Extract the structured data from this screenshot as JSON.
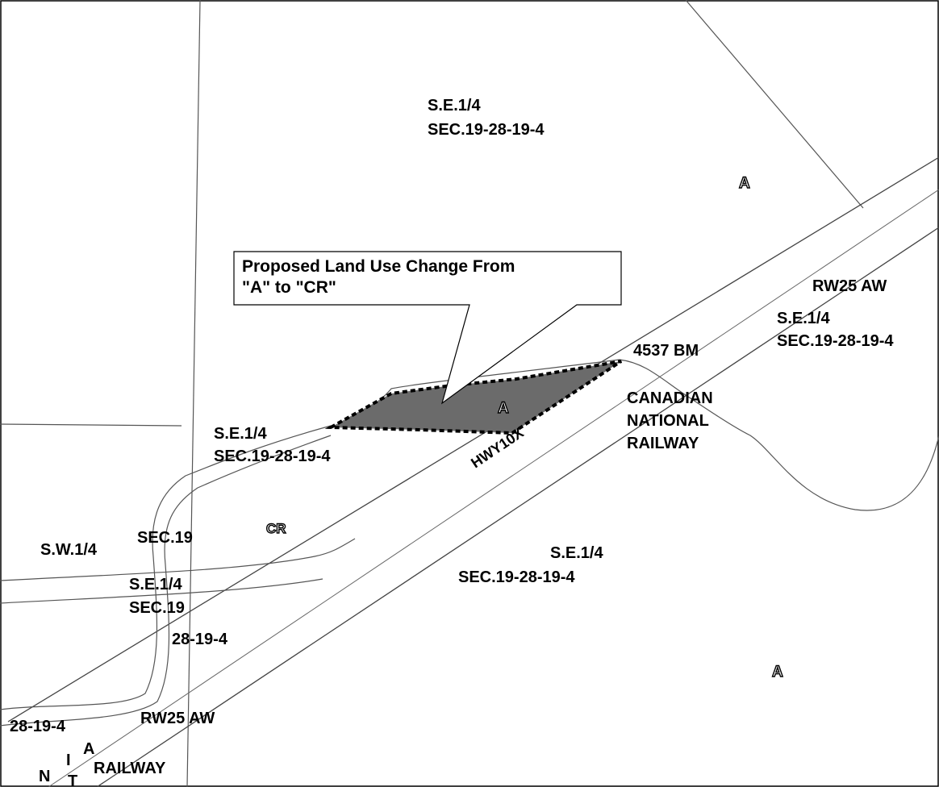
{
  "callout": {
    "line1": "Proposed Land Use Change From",
    "line2": "\"A\" to \"CR\""
  },
  "zoning_labels": {
    "parcel": "A",
    "north": "A",
    "south_east": "A",
    "commercial": "CR"
  },
  "parcel_labels": {
    "top_quarter": "S.E.1/4",
    "top_section": "SEC.19-28-19-4",
    "right_quarter": "S.E.1/4",
    "right_section": "SEC.19-28-19-4",
    "left_quarter": "S.E.1/4",
    "left_section": "SEC.19-28-19-4",
    "bottom_quarter": "S.E.1/4",
    "bottom_section": "SEC.19-28-19-4",
    "sw_quarter": "S.W.1/4",
    "sec19_a": "SEC.19",
    "se_small_quarter": "S.E.1/4",
    "sec19_b": "SEC.19",
    "twp_a": "28-19-4",
    "twp_b": "28-19-4"
  },
  "features": {
    "benchmark": "4537 BM",
    "rw_top": "RW25 AW",
    "rw_bottom": "RW25 AW",
    "railway_line1": "CANADIAN",
    "railway_line2": "NATIONAL",
    "railway_line3": "RAILWAY",
    "railway_bottom": "RAILWAY",
    "highway": "HWY10X",
    "frag_n": "N",
    "frag_i": "I",
    "frag_a": "A",
    "frag_t": "T"
  },
  "colors": {
    "parcel_fill": "#6b6b6b",
    "boundary_line": "#000000",
    "road_line": "#555555",
    "background": "#ffffff"
  }
}
